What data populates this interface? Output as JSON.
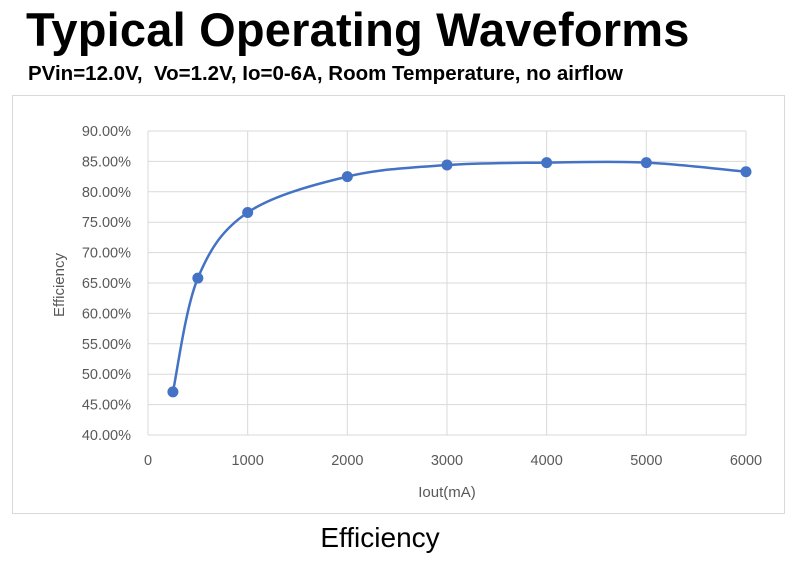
{
  "header": {
    "title": "Typical Operating Waveforms",
    "subtitle": "PVin=12.0V,  Vo=1.2V, Io=0-6A, Room Temperature, no airflow"
  },
  "caption": "Efficiency",
  "chart_data": {
    "type": "line",
    "title": "",
    "xlabel": "Iout(mA)",
    "ylabel": "Efficiency",
    "xlim": [
      0,
      6000
    ],
    "ylim": [
      40,
      90
    ],
    "x_ticks": [
      0,
      1000,
      2000,
      3000,
      4000,
      5000,
      6000
    ],
    "x_tick_labels": [
      "0",
      "1000",
      "2000",
      "3000",
      "4000",
      "5000",
      "6000"
    ],
    "y_ticks": [
      40,
      45,
      50,
      55,
      60,
      65,
      70,
      75,
      80,
      85,
      90
    ],
    "y_tick_labels": [
      "40.00%",
      "45.00%",
      "50.00%",
      "55.00%",
      "60.00%",
      "65.00%",
      "70.00%",
      "75.00%",
      "80.00%",
      "85.00%",
      "90.00%"
    ],
    "grid": {
      "horizontal": true,
      "vertical": true
    },
    "legend": "none",
    "series": [
      {
        "x": [
          250,
          500,
          1000,
          2000,
          3000,
          4000,
          5000,
          6000
        ],
        "y": [
          47.1,
          65.8,
          76.6,
          82.5,
          84.4,
          84.8,
          84.8,
          83.3
        ],
        "color": "#4472c4",
        "smooth": true,
        "markers": true
      }
    ]
  }
}
